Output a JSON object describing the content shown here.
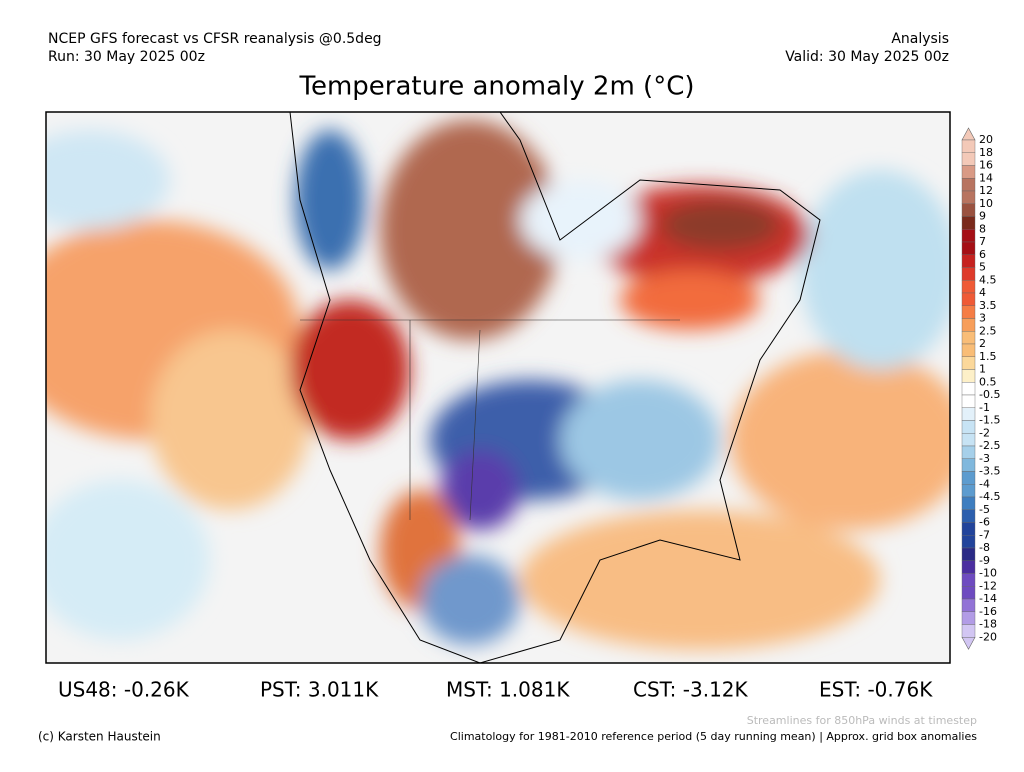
{
  "header": {
    "left": [
      "NCEP GFS forecast vs CFSR reanalysis @0.5deg",
      "Run: 30 May 2025 00z"
    ],
    "right": [
      "Analysis",
      "Valid: 30 May 2025 00z"
    ],
    "title": "Temperature anomaly 2m (°C)"
  },
  "colorbar": {
    "labels": [
      20,
      18,
      16,
      14,
      12,
      10,
      9,
      8,
      7,
      6,
      5,
      4.5,
      4,
      3.5,
      3,
      2.5,
      2,
      1.5,
      1,
      0.5,
      -0.5,
      -1,
      -1.5,
      -2,
      -2.5,
      -3,
      -3.5,
      -4,
      -4.5,
      -5,
      -6,
      -7,
      -8,
      -9,
      -10,
      -12,
      -14,
      -16,
      -18,
      -20
    ]
  },
  "stats": [
    "US48: -0.26K",
    "PST: 3.011K",
    "MST: 1.081K",
    "CST: -3.12K",
    "EST: -0.76K"
  ],
  "footer": {
    "copyright": "(c) Karsten Haustein",
    "streamlines": "Streamlines for 850hPa winds at timestep",
    "climatology": "Climatology for 1981-2010 reference period (5 day running mean) | Approx. grid box anomalies"
  }
}
